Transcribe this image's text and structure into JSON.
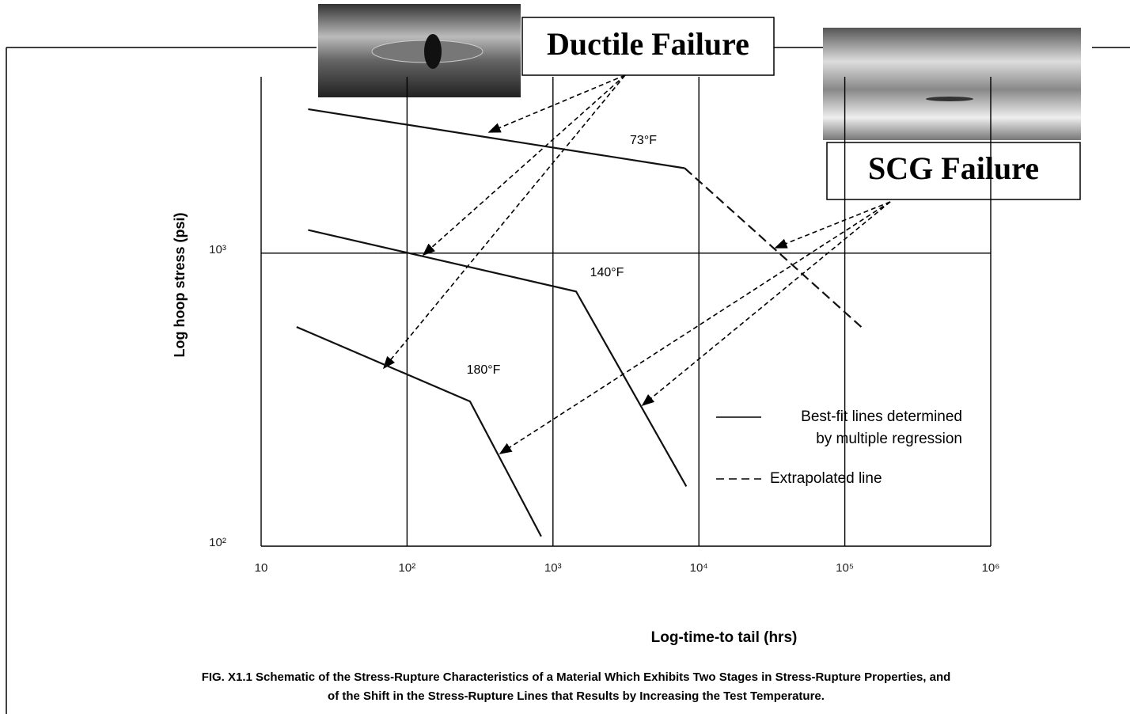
{
  "chart_data": {
    "type": "line",
    "x_label": "Log-time-to tail (hrs)",
    "y_label": "Log hoop stress (psi)",
    "caption": [
      "FIG. X1.1 Schematic of the Stress-Rupture Characteristics of a Material Which Exhibits Two Stages in Stress-Rupture Properties, and",
      "of the Shift in the Stress-Rupture Lines that Results by Increasing the Test Temperature."
    ],
    "log_x": true,
    "log_y": true,
    "grid": true,
    "xlim": [
      10,
      1000000
    ],
    "xticks": [
      10,
      {
        "value": 100,
        "label": "10²"
      },
      {
        "value": 1000,
        "label": "10³"
      },
      {
        "value": 10000,
        "label": "10⁴"
      },
      {
        "value": 100000,
        "label": "10⁵"
      },
      {
        "value": 1000000,
        "label": "10⁶"
      }
    ],
    "ylim": [
      100,
      4000
    ],
    "yticks": [
      {
        "value": 100,
        "label": "10²"
      },
      {
        "value": 1000,
        "label": "10³"
      }
    ],
    "series": [
      {
        "name": "73°F",
        "color": "#111111",
        "x": [
          21,
          8000
        ],
        "values": [
          3100,
          1950
        ],
        "extrapolated": {
          "x": [
            8000,
            135000
          ],
          "values": [
            1950,
            550
          ]
        }
      },
      {
        "name": "140°F",
        "color": "#111111",
        "x": [
          21,
          1440,
          8200
        ],
        "values": [
          1200,
          740,
          160
        ]
      },
      {
        "name": "180°F",
        "color": "#111111",
        "x": [
          17.5,
          270,
          830
        ],
        "values": [
          560,
          312,
          108
        ]
      }
    ],
    "legend": [
      {
        "label": [
          "Best-fit lines determined",
          "by multiple regression"
        ],
        "dashed": false
      },
      {
        "label": [
          "Extrapolated line"
        ],
        "dashed": true
      }
    ],
    "annotations": [
      "Ductile Failure",
      "SCG Failure"
    ]
  }
}
